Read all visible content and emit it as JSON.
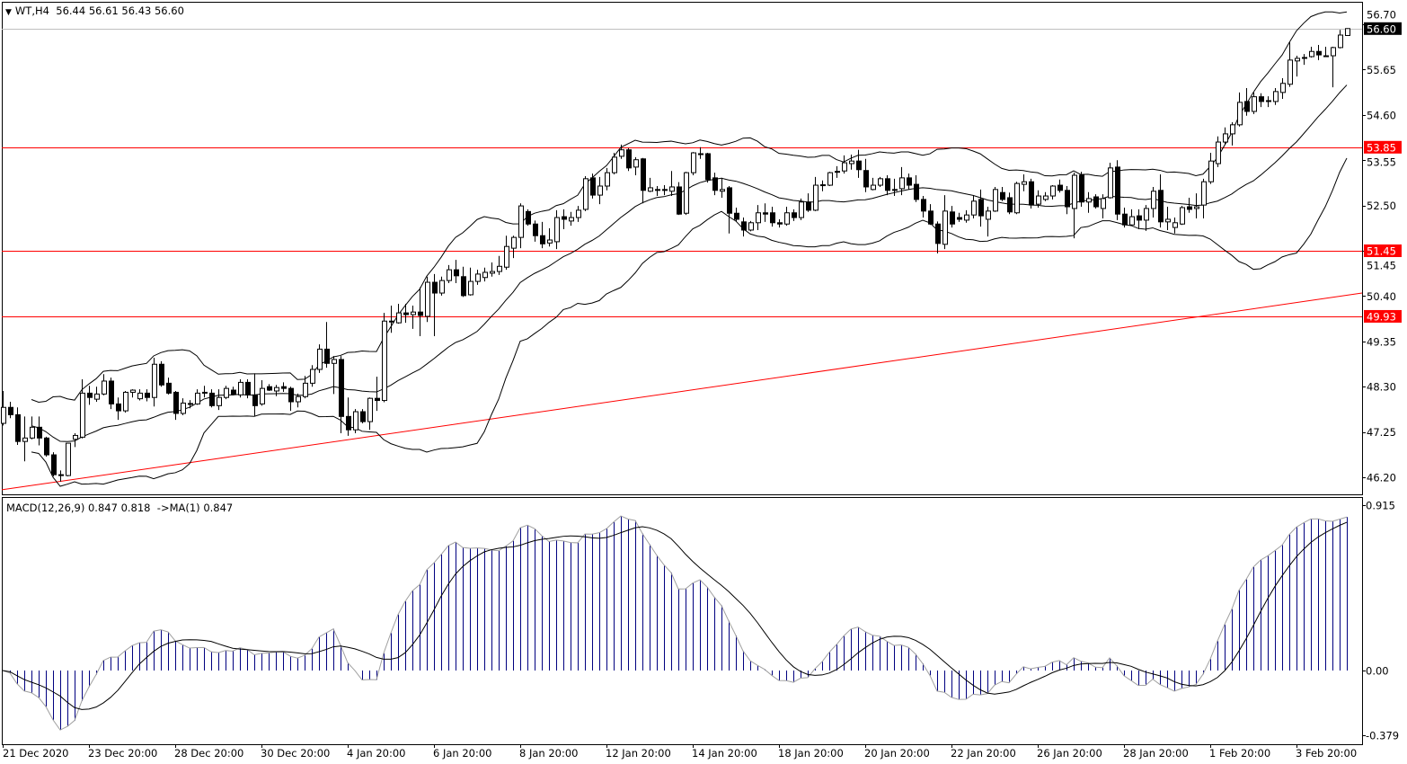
{
  "header": {
    "symbol": "WT,H4",
    "ohlc": "56.44 56.61 56.43 56.60",
    "dropdown_icon": "triangle-down-icon"
  },
  "macd_label": {
    "text": "MACD(12,26,9) 0.847 0.818  ->MA(1) 0.847"
  },
  "colors": {
    "bull_body": "#ffffff",
    "bear_body": "#000000",
    "level_line": "#ff0000",
    "bid_line": "#c0c0c0",
    "histogram": "#000080",
    "macd_ma_line": "#a0a0a0",
    "signal_line": "#000000"
  },
  "chart_data": [
    {
      "type": "candlestick",
      "symbol": "WT",
      "timeframe": "H4",
      "price_ticks": [
        "56.70",
        "55.65",
        "54.60",
        "53.55",
        "52.50",
        "51.45",
        "50.40",
        "49.35",
        "48.30",
        "47.25",
        "46.20"
      ],
      "ylim": [
        45.9,
        57.3
      ],
      "x_tick_labels": [
        "21 Dec 2020",
        "23 Dec 20:00",
        "28 Dec 20:00",
        "30 Dec 20:00",
        "4 Jan 20:00",
        "6 Jan 20:00",
        "8 Jan 20:00",
        "12 Jan 20:00",
        "14 Jan 20:00",
        "18 Jan 20:00",
        "20 Jan 20:00",
        "22 Jan 20:00",
        "26 Jan 20:00",
        "28 Jan 20:00",
        "1 Feb 20:00",
        "3 Feb 20:00"
      ],
      "current_price": {
        "value": 56.6,
        "label": "56.60"
      },
      "horizontal_levels": [
        {
          "value": 53.85,
          "label": "53.85"
        },
        {
          "value": 51.45,
          "label": "51.45"
        },
        {
          "value": 49.93,
          "label": "49.93"
        }
      ],
      "trendline": {
        "start_price": 45.91,
        "end_price": 50.47
      },
      "indicators": [
        "Bollinger Bands"
      ],
      "ohlc": [
        [
          47.45,
          48.2,
          47.4,
          47.82
        ],
        [
          47.82,
          47.95,
          47.57,
          47.65
        ],
        [
          47.65,
          47.82,
          46.95,
          47.03
        ],
        [
          47.03,
          47.61,
          46.57,
          47.11
        ],
        [
          47.11,
          47.61,
          47.08,
          47.36
        ],
        [
          47.36,
          47.61,
          46.94,
          47.11
        ],
        [
          47.11,
          47.14,
          46.68,
          46.72
        ],
        [
          46.72,
          46.78,
          46.22,
          46.26
        ],
        [
          46.26,
          46.36,
          46.1,
          46.24
        ],
        [
          46.24,
          46.99,
          46.22,
          46.99
        ],
        [
          47.08,
          47.22,
          46.9,
          47.17
        ],
        [
          47.13,
          48.47,
          47.1,
          48.15
        ],
        [
          48.15,
          48.32,
          47.88,
          48.05
        ],
        [
          48.01,
          48.3,
          47.95,
          48.13
        ],
        [
          48.13,
          48.59,
          48.1,
          48.43
        ],
        [
          48.43,
          48.51,
          47.78,
          47.9
        ],
        [
          47.9,
          48.05,
          47.53,
          47.74
        ],
        [
          47.74,
          48.2,
          47.7,
          48.17
        ],
        [
          48.17,
          48.24,
          48.05,
          48.22
        ],
        [
          48.02,
          48.24,
          47.98,
          48.15
        ],
        [
          48.15,
          48.24,
          47.96,
          48.05
        ],
        [
          48.05,
          48.97,
          47.84,
          48.82
        ],
        [
          48.82,
          48.89,
          48.3,
          48.34
        ],
        [
          48.38,
          48.51,
          48.12,
          48.15
        ],
        [
          48.17,
          48.2,
          47.53,
          47.68
        ],
        [
          47.68,
          48.03,
          47.64,
          47.92
        ],
        [
          47.9,
          47.99,
          47.8,
          47.91
        ],
        [
          47.9,
          48.24,
          47.88,
          48.15
        ],
        [
          48.17,
          48.32,
          48.05,
          48.15
        ],
        [
          48.15,
          48.24,
          47.82,
          47.86
        ],
        [
          47.86,
          48.24,
          47.76,
          48.05
        ],
        [
          48.05,
          48.32,
          48.01,
          48.26
        ],
        [
          48.22,
          48.3,
          48.1,
          48.12
        ],
        [
          48.11,
          48.47,
          48.05,
          48.4
        ],
        [
          48.4,
          48.47,
          48.03,
          48.11
        ],
        [
          48.11,
          48.61,
          47.61,
          47.86
        ],
        [
          47.9,
          48.45,
          47.86,
          48.26
        ],
        [
          48.3,
          48.36,
          48.2,
          48.22
        ],
        [
          48.2,
          48.34,
          48.08,
          48.28
        ],
        [
          48.3,
          48.4,
          48.18,
          48.26
        ],
        [
          48.26,
          48.3,
          47.74,
          47.95
        ],
        [
          47.95,
          48.14,
          47.82,
          48.07
        ],
        [
          48.07,
          48.55,
          48.03,
          48.38
        ],
        [
          48.38,
          48.8,
          48.3,
          48.7
        ],
        [
          48.7,
          49.28,
          48.62,
          49.17
        ],
        [
          49.17,
          49.8,
          48.74,
          48.84
        ],
        [
          48.84,
          49.01,
          48.13,
          48.93
        ],
        [
          48.93,
          49.01,
          47.22,
          47.61
        ],
        [
          47.61,
          48.05,
          47.16,
          47.3
        ],
        [
          47.3,
          47.78,
          47.22,
          47.72
        ],
        [
          47.72,
          47.78,
          47.45,
          47.49
        ],
        [
          47.49,
          48.05,
          47.3,
          48.03
        ],
        [
          48.03,
          48.53,
          47.74,
          47.98
        ],
        [
          47.98,
          50.01,
          47.94,
          49.82
        ],
        [
          49.82,
          50.18,
          49.55,
          49.8
        ],
        [
          49.78,
          50.22,
          49.76,
          50.01
        ],
        [
          50.01,
          50.22,
          49.78,
          49.97
        ],
        [
          49.97,
          50.18,
          49.64,
          50.03
        ],
        [
          50.03,
          50.6,
          49.47,
          49.95
        ],
        [
          49.93,
          50.85,
          49.8,
          50.72
        ],
        [
          50.72,
          50.91,
          49.47,
          50.47
        ],
        [
          50.47,
          50.85,
          50.41,
          50.76
        ],
        [
          50.76,
          51.12,
          50.7,
          51.01
        ],
        [
          51.01,
          51.24,
          50.7,
          50.87
        ],
        [
          50.85,
          51.08,
          50.38,
          50.41
        ],
        [
          50.43,
          51.06,
          50.41,
          50.74
        ],
        [
          50.74,
          51.01,
          50.66,
          50.91
        ],
        [
          50.83,
          51.06,
          50.74,
          50.95
        ],
        [
          50.93,
          51.18,
          50.85,
          50.97
        ],
        [
          50.97,
          51.33,
          50.89,
          51.09
        ],
        [
          51.07,
          51.8,
          51.01,
          51.55
        ],
        [
          51.51,
          51.8,
          51.28,
          51.76
        ],
        [
          51.76,
          52.55,
          51.51,
          52.49
        ],
        [
          52.36,
          52.41,
          52.03,
          52.07
        ],
        [
          52.07,
          52.15,
          51.66,
          51.8
        ],
        [
          51.8,
          52.12,
          51.51,
          51.61
        ],
        [
          51.63,
          51.97,
          51.55,
          51.7
        ],
        [
          51.66,
          52.39,
          51.49,
          52.22
        ],
        [
          52.24,
          52.41,
          51.95,
          52.18
        ],
        [
          52.14,
          52.35,
          52.03,
          52.22
        ],
        [
          52.22,
          52.49,
          52.12,
          52.39
        ],
        [
          52.41,
          53.18,
          52.37,
          53.12
        ],
        [
          53.14,
          53.24,
          52.66,
          52.74
        ],
        [
          52.74,
          53.16,
          52.53,
          52.95
        ],
        [
          52.95,
          53.37,
          52.85,
          53.26
        ],
        [
          53.26,
          53.72,
          53.22,
          53.62
        ],
        [
          53.64,
          53.91,
          53.58,
          53.79
        ],
        [
          53.79,
          53.83,
          53.3,
          53.37
        ],
        [
          53.39,
          53.62,
          53.2,
          53.56
        ],
        [
          53.58,
          53.6,
          52.55,
          52.85
        ],
        [
          52.83,
          53.14,
          52.81,
          52.91
        ],
        [
          52.87,
          52.95,
          52.72,
          52.85
        ],
        [
          52.87,
          52.97,
          52.74,
          52.87
        ],
        [
          52.83,
          53.3,
          52.72,
          52.93
        ],
        [
          52.93,
          53.04,
          52.28,
          52.3
        ],
        [
          52.32,
          53.28,
          52.28,
          53.26
        ],
        [
          53.26,
          53.74,
          53.2,
          53.72
        ],
        [
          53.7,
          53.85,
          53.58,
          53.7
        ],
        [
          53.7,
          53.72,
          53.03,
          53.1
        ],
        [
          53.14,
          53.26,
          52.74,
          52.85
        ],
        [
          52.83,
          53.14,
          52.68,
          52.87
        ],
        [
          52.91,
          52.95,
          51.85,
          52.32
        ],
        [
          52.32,
          52.45,
          52.12,
          52.18
        ],
        [
          52.12,
          52.22,
          51.78,
          51.93
        ],
        [
          51.93,
          52.14,
          51.9,
          52.1
        ],
        [
          52.1,
          52.51,
          51.93,
          52.33
        ],
        [
          52.33,
          52.55,
          52.12,
          52.3
        ],
        [
          52.33,
          52.47,
          52.01,
          52.1
        ],
        [
          52.1,
          52.18,
          51.99,
          52.07
        ],
        [
          52.07,
          52.47,
          52.03,
          52.33
        ],
        [
          52.33,
          52.41,
          52.14,
          52.22
        ],
        [
          52.22,
          52.66,
          52.16,
          52.58
        ],
        [
          52.58,
          52.78,
          52.35,
          52.39
        ],
        [
          52.39,
          53.16,
          52.37,
          52.97
        ],
        [
          52.97,
          53.08,
          52.83,
          52.98
        ],
        [
          52.97,
          53.28,
          52.95,
          53.26
        ],
        [
          53.28,
          53.41,
          53.14,
          53.29
        ],
        [
          53.3,
          53.66,
          53.24,
          53.49
        ],
        [
          53.47,
          53.68,
          53.33,
          53.53
        ],
        [
          53.53,
          53.79,
          53.14,
          53.33
        ],
        [
          53.31,
          53.58,
          52.81,
          52.93
        ],
        [
          52.87,
          53.14,
          52.85,
          52.97
        ],
        [
          52.97,
          53.16,
          52.93,
          53.12
        ],
        [
          53.12,
          53.2,
          52.74,
          52.85
        ],
        [
          52.87,
          53.12,
          52.72,
          52.86
        ],
        [
          52.89,
          53.39,
          52.74,
          53.14
        ],
        [
          53.14,
          53.24,
          52.87,
          52.97
        ],
        [
          52.99,
          53.2,
          52.58,
          52.64
        ],
        [
          52.64,
          52.72,
          52.22,
          52.37
        ],
        [
          52.37,
          52.53,
          52.05,
          52.07
        ],
        [
          52.07,
          52.13,
          51.39,
          51.62
        ],
        [
          51.6,
          52.74,
          51.49,
          52.37
        ],
        [
          52.35,
          52.49,
          51.99,
          52.07
        ],
        [
          52.22,
          52.33,
          52.12,
          52.18
        ],
        [
          52.16,
          52.39,
          52.1,
          52.28
        ],
        [
          52.28,
          52.74,
          52.2,
          52.6
        ],
        [
          52.64,
          52.87,
          52.01,
          52.26
        ],
        [
          52.18,
          52.47,
          51.78,
          52.37
        ],
        [
          52.37,
          52.93,
          52.35,
          52.87
        ],
        [
          52.8,
          52.93,
          52.6,
          52.64
        ],
        [
          52.68,
          52.8,
          52.3,
          52.35
        ],
        [
          52.33,
          53.05,
          52.3,
          53.01
        ],
        [
          52.99,
          53.22,
          52.83,
          53.05
        ],
        [
          53.05,
          53.12,
          52.43,
          52.51
        ],
        [
          52.53,
          52.85,
          52.45,
          52.72
        ],
        [
          52.64,
          52.81,
          52.6,
          52.72
        ],
        [
          52.72,
          52.97,
          52.64,
          52.95
        ],
        [
          52.97,
          53.1,
          52.8,
          52.85
        ],
        [
          52.85,
          52.95,
          52.3,
          52.47
        ],
        [
          52.43,
          53.26,
          51.74,
          53.2
        ],
        [
          53.2,
          53.28,
          52.47,
          52.58
        ],
        [
          52.58,
          52.81,
          52.33,
          52.66
        ],
        [
          52.7,
          52.76,
          52.43,
          52.47
        ],
        [
          52.43,
          52.76,
          52.2,
          52.66
        ],
        [
          52.68,
          53.49,
          52.66,
          53.37
        ],
        [
          53.39,
          53.55,
          52.16,
          52.3
        ],
        [
          52.3,
          52.45,
          51.99,
          52.05
        ],
        [
          52.05,
          52.41,
          52.03,
          52.24
        ],
        [
          52.26,
          52.41,
          51.95,
          52.16
        ],
        [
          52.16,
          52.51,
          51.91,
          52.43
        ],
        [
          52.43,
          52.93,
          52.22,
          52.83
        ],
        [
          52.85,
          53.22,
          51.99,
          52.12
        ],
        [
          52.12,
          52.47,
          51.93,
          52.18
        ],
        [
          51.99,
          52.22,
          51.85,
          52.1
        ],
        [
          52.07,
          52.49,
          52.05,
          52.45
        ],
        [
          52.47,
          52.68,
          52.33,
          52.41
        ],
        [
          52.43,
          52.78,
          52.2,
          52.47
        ],
        [
          52.51,
          53.12,
          52.2,
          53.05
        ],
        [
          53.05,
          53.72,
          53.0,
          53.53
        ],
        [
          53.47,
          54.1,
          53.39,
          53.97
        ],
        [
          53.97,
          54.31,
          53.92,
          54.16
        ],
        [
          54.16,
          54.43,
          53.89,
          54.37
        ],
        [
          54.37,
          55.12,
          54.33,
          54.89
        ],
        [
          54.91,
          55.22,
          54.58,
          54.68
        ],
        [
          54.68,
          55.12,
          54.62,
          55.02
        ],
        [
          55.02,
          55.1,
          54.78,
          54.91
        ],
        [
          54.93,
          55.03,
          54.78,
          54.91
        ],
        [
          54.91,
          55.22,
          54.83,
          55.14
        ],
        [
          55.12,
          55.45,
          54.97,
          55.33
        ],
        [
          55.31,
          56.28,
          55.25,
          55.87
        ],
        [
          55.85,
          55.97,
          55.49,
          55.91
        ],
        [
          55.93,
          56.01,
          55.76,
          55.92
        ],
        [
          55.95,
          56.18,
          55.93,
          56.07
        ],
        [
          56.07,
          56.22,
          55.87,
          55.99
        ],
        [
          55.97,
          56.18,
          55.95,
          55.96
        ],
        [
          55.97,
          56.18,
          55.24,
          56.16
        ],
        [
          56.16,
          56.57,
          56.14,
          56.45
        ],
        [
          56.44,
          56.61,
          56.43,
          56.6
        ]
      ]
    },
    {
      "type": "histogram+line",
      "indicator": "MACD(12,26,9)",
      "values_printed": {
        "macd": 0.847,
        "signal": 0.818,
        "ma1": 0.847
      },
      "y_ticks": [
        "0.915",
        "0.00",
        "-0.379"
      ],
      "ylim": [
        -0.395,
        0.95
      ]
    }
  ]
}
